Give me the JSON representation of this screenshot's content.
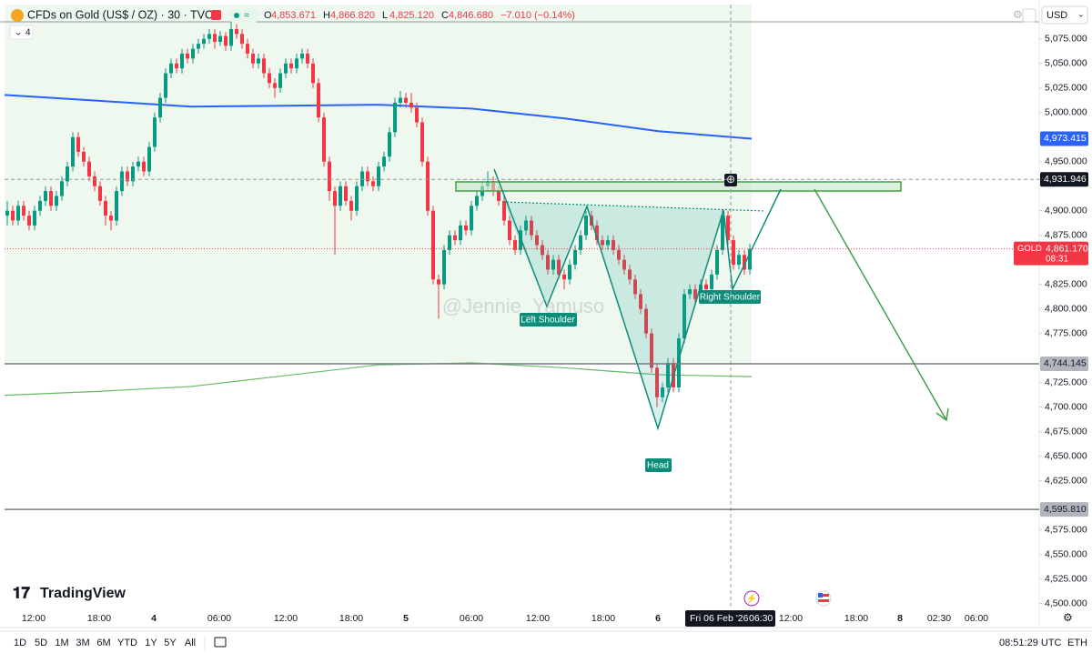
{
  "header": {
    "symbol": "CFDs on Gold (US$ / OZ) · 30 · TVC",
    "ohlc": [
      {
        "key": "O",
        "value": "4,853.671"
      },
      {
        "key": "H",
        "value": "4,866.820"
      },
      {
        "key": "L",
        "value": "4,825.120"
      },
      {
        "key": "C",
        "value": "4,846.680"
      }
    ],
    "change": "−7.010 (−0.14%)",
    "indicators": "4",
    "currency": "USD"
  },
  "chart_data": {
    "type": "candlestick",
    "ylim": [
      4494,
      5110
    ],
    "yticks": [
      {
        "value": 5075,
        "label": "5,075.000"
      },
      {
        "value": 5050,
        "label": "5,050.000"
      },
      {
        "value": 5025,
        "label": "5,025.000"
      },
      {
        "value": 5000,
        "label": "5,000.000"
      },
      {
        "value": 4950,
        "label": "4,950.000"
      },
      {
        "value": 4900,
        "label": "4,900.000"
      },
      {
        "value": 4875,
        "label": "4,875.000"
      },
      {
        "value": 4825,
        "label": "4,825.000"
      },
      {
        "value": 4800,
        "label": "4,800.000"
      },
      {
        "value": 4775,
        "label": "4,775.000"
      },
      {
        "value": 4725,
        "label": "4,725.000"
      },
      {
        "value": 4700,
        "label": "4,700.000"
      },
      {
        "value": 4675,
        "label": "4,675.000"
      },
      {
        "value": 4650,
        "label": "4,650.000"
      },
      {
        "value": 4625,
        "label": "4,625.000"
      },
      {
        "value": 4575,
        "label": "4,575.000"
      },
      {
        "value": 4550,
        "label": "4,550.000"
      },
      {
        "value": 4525,
        "label": "4,525.000"
      },
      {
        "value": 4500,
        "label": "4,500.000"
      }
    ],
    "x_labels": [
      "12:00",
      "18:00",
      "4",
      "06:00",
      "12:00",
      "18:00",
      "5",
      "06:00",
      "12:00",
      "18:00",
      "6",
      "12:00",
      "18:00",
      "8",
      "02:30",
      "06:00"
    ],
    "crosshair_time": [
      "Fri 06 Feb '26",
      "06:30"
    ],
    "up_color": "#089981",
    "down_color": "#f23645",
    "candles": [
      [
        4895,
        4910,
        4885,
        4900
      ],
      [
        4900,
        4905,
        4885,
        4890
      ],
      [
        4890,
        4910,
        4885,
        4905
      ],
      [
        4905,
        4910,
        4890,
        4895
      ],
      [
        4895,
        4900,
        4880,
        4885
      ],
      [
        4885,
        4905,
        4880,
        4900
      ],
      [
        4900,
        4915,
        4895,
        4910
      ],
      [
        4910,
        4925,
        4905,
        4920
      ],
      [
        4920,
        4925,
        4900,
        4905
      ],
      [
        4905,
        4920,
        4900,
        4915
      ],
      [
        4915,
        4935,
        4910,
        4930
      ],
      [
        4930,
        4950,
        4925,
        4945
      ],
      [
        4945,
        4980,
        4940,
        4975
      ],
      [
        4975,
        4980,
        4955,
        4960
      ],
      [
        4960,
        4965,
        4945,
        4950
      ],
      [
        4950,
        4955,
        4930,
        4935
      ],
      [
        4935,
        4940,
        4920,
        4925
      ],
      [
        4925,
        4930,
        4905,
        4910
      ],
      [
        4910,
        4915,
        4885,
        4895
      ],
      [
        4895,
        4900,
        4880,
        4890
      ],
      [
        4890,
        4925,
        4885,
        4920
      ],
      [
        4920,
        4945,
        4915,
        4940
      ],
      [
        4940,
        4945,
        4925,
        4930
      ],
      [
        4930,
        4950,
        4925,
        4945
      ],
      [
        4945,
        4955,
        4940,
        4950
      ],
      [
        4950,
        4955,
        4935,
        4940
      ],
      [
        4940,
        4970,
        4935,
        4965
      ],
      [
        4965,
        5000,
        4960,
        4995
      ],
      [
        4995,
        5020,
        4990,
        5015
      ],
      [
        5015,
        5045,
        5010,
        5040
      ],
      [
        5040,
        5055,
        5035,
        5050
      ],
      [
        5050,
        5055,
        5040,
        5045
      ],
      [
        5045,
        5065,
        5040,
        5060
      ],
      [
        5060,
        5065,
        5050,
        5055
      ],
      [
        5055,
        5070,
        5050,
        5065
      ],
      [
        5065,
        5075,
        5060,
        5070
      ],
      [
        5070,
        5080,
        5065,
        5075
      ],
      [
        5075,
        5085,
        5070,
        5080
      ],
      [
        5080,
        5085,
        5065,
        5072
      ],
      [
        5072,
        5083,
        5068,
        5078
      ],
      [
        5078,
        5082,
        5063,
        5068
      ],
      [
        5068,
        5092,
        5063,
        5085
      ],
      [
        5085,
        5090,
        5075,
        5080
      ],
      [
        5080,
        5085,
        5065,
        5070
      ],
      [
        5070,
        5075,
        5055,
        5060
      ],
      [
        5060,
        5065,
        5045,
        5050
      ],
      [
        5050,
        5060,
        5045,
        5055
      ],
      [
        5055,
        5060,
        5035,
        5040
      ],
      [
        5040,
        5045,
        5025,
        5030
      ],
      [
        5030,
        5035,
        5015,
        5025
      ],
      [
        5025,
        5045,
        5020,
        5040
      ],
      [
        5040,
        5055,
        5035,
        5050
      ],
      [
        5050,
        5055,
        5040,
        5045
      ],
      [
        5045,
        5060,
        5040,
        5055
      ],
      [
        5055,
        5065,
        5050,
        5060
      ],
      [
        5060,
        5065,
        5045,
        5050
      ],
      [
        5050,
        5055,
        5025,
        5030
      ],
      [
        5030,
        5035,
        4990,
        4995
      ],
      [
        4995,
        5000,
        4945,
        4950
      ],
      [
        4950,
        4955,
        4910,
        4920
      ],
      [
        4920,
        4925,
        4855,
        4905
      ],
      [
        4905,
        4930,
        4900,
        4925
      ],
      [
        4925,
        4930,
        4905,
        4910
      ],
      [
        4910,
        4915,
        4890,
        4900
      ],
      [
        4900,
        4930,
        4895,
        4925
      ],
      [
        4925,
        4945,
        4920,
        4940
      ],
      [
        4940,
        4945,
        4925,
        4930
      ],
      [
        4930,
        4935,
        4920,
        4925
      ],
      [
        4925,
        4950,
        4920,
        4945
      ],
      [
        4945,
        4960,
        4940,
        4955
      ],
      [
        4955,
        4985,
        4950,
        4980
      ],
      [
        4980,
        5015,
        4975,
        5010
      ],
      [
        5010,
        5022,
        5005,
        5015
      ],
      [
        5015,
        5020,
        5005,
        5010
      ],
      [
        5010,
        5020,
        5000,
        5005
      ],
      [
        5005,
        5010,
        4985,
        4990
      ],
      [
        4990,
        4995,
        4945,
        4950
      ],
      [
        4950,
        4955,
        4895,
        4900
      ],
      [
        4900,
        4905,
        4825,
        4830
      ],
      [
        4830,
        4835,
        4790,
        4825
      ],
      [
        4825,
        4865,
        4820,
        4860
      ],
      [
        4860,
        4880,
        4855,
        4875
      ],
      [
        4875,
        4880,
        4865,
        4870
      ],
      [
        4870,
        4890,
        4865,
        4885
      ],
      [
        4885,
        4890,
        4875,
        4880
      ],
      [
        4880,
        4910,
        4875,
        4905
      ],
      [
        4905,
        4920,
        4900,
        4915
      ],
      [
        4915,
        4930,
        4910,
        4925
      ],
      [
        4925,
        4940,
        4920,
        4930
      ],
      [
        4930,
        4935,
        4915,
        4920
      ],
      [
        4920,
        4925,
        4905,
        4910
      ],
      [
        4910,
        4915,
        4885,
        4890
      ],
      [
        4890,
        4895,
        4865,
        4870
      ],
      [
        4870,
        4875,
        4855,
        4860
      ],
      [
        4860,
        4885,
        4855,
        4880
      ],
      [
        4880,
        4895,
        4875,
        4890
      ],
      [
        4890,
        4895,
        4870,
        4875
      ],
      [
        4875,
        4880,
        4860,
        4865
      ],
      [
        4865,
        4870,
        4850,
        4855
      ],
      [
        4855,
        4860,
        4835,
        4840
      ],
      [
        4840,
        4855,
        4835,
        4850
      ],
      [
        4850,
        4855,
        4830,
        4835
      ],
      [
        4835,
        4840,
        4820,
        4830
      ],
      [
        4830,
        4850,
        4825,
        4845
      ],
      [
        4845,
        4865,
        4840,
        4860
      ],
      [
        4860,
        4880,
        4855,
        4875
      ],
      [
        4875,
        4900,
        4870,
        4895
      ],
      [
        4895,
        4900,
        4880,
        4885
      ],
      [
        4885,
        4890,
        4865,
        4870
      ],
      [
        4870,
        4875,
        4860,
        4865
      ],
      [
        4865,
        4875,
        4860,
        4870
      ],
      [
        4870,
        4875,
        4855,
        4860
      ],
      [
        4860,
        4865,
        4845,
        4850
      ],
      [
        4850,
        4855,
        4835,
        4840
      ],
      [
        4840,
        4845,
        4825,
        4830
      ],
      [
        4830,
        4835,
        4810,
        4815
      ],
      [
        4815,
        4820,
        4795,
        4800
      ],
      [
        4800,
        4805,
        4770,
        4775
      ],
      [
        4775,
        4780,
        4735,
        4740
      ],
      [
        4740,
        4745,
        4700,
        4710
      ],
      [
        4710,
        4725,
        4705,
        4720
      ],
      [
        4720,
        4750,
        4715,
        4745
      ],
      [
        4745,
        4750,
        4715,
        4720
      ],
      [
        4720,
        4775,
        4715,
        4770
      ],
      [
        4770,
        4820,
        4765,
        4815
      ],
      [
        4815,
        4825,
        4810,
        4820
      ],
      [
        4820,
        4825,
        4805,
        4810
      ],
      [
        4810,
        4830,
        4805,
        4825
      ],
      [
        4825,
        4830,
        4815,
        4820
      ],
      [
        4820,
        4840,
        4815,
        4835
      ],
      [
        4835,
        4865,
        4830,
        4860
      ],
      [
        4860,
        4900,
        4855,
        4895
      ],
      [
        4895,
        4900,
        4865,
        4870
      ],
      [
        4870,
        4875,
        4840,
        4845
      ],
      [
        4845,
        4860,
        4840,
        4855
      ],
      [
        4855,
        4860,
        4835,
        4840
      ],
      [
        4840,
        4866,
        4835,
        4861
      ]
    ],
    "moving_averages": [
      {
        "color": "#2962ff",
        "values": [
          5018,
          5012,
          5006,
          5007,
          5008,
          5004,
          4994,
          4981,
          4973.415
        ]
      },
      {
        "color": "#66bb6a",
        "values": [
          4712,
          4716,
          4721,
          4732,
          4743,
          4745,
          4740,
          4733,
          4731
        ]
      }
    ],
    "price_labels": [
      {
        "value": 4973.415,
        "label": "4,973.415",
        "color": "#2962ff",
        "line": false
      },
      {
        "value": 4931.946,
        "label": "4,931.946",
        "color": "#131722",
        "line": "dashed"
      },
      {
        "value": 4744.145,
        "label": "4,744.145",
        "color": "#b2b5be",
        "line": "solid"
      },
      {
        "value": 4595.81,
        "label": "4,595.810",
        "color": "#b2b5be",
        "line": "solid"
      }
    ],
    "last_price": {
      "symbol": "GOLD",
      "value": 4861.17,
      "label": "4,861.170",
      "countdown": "08:31",
      "color": "#f23645"
    },
    "annotations": [
      "Left Shoulder",
      "Head",
      "Right Shoulder"
    ],
    "watermark": "@Jennie_Yamuso"
  },
  "footer": {
    "logo": "TradingView",
    "ranges": [
      "1D",
      "5D",
      "1M",
      "3M",
      "6M",
      "YTD",
      "1Y",
      "5Y",
      "All"
    ],
    "clock": "08:51:29 UTC",
    "session": "ETH"
  }
}
